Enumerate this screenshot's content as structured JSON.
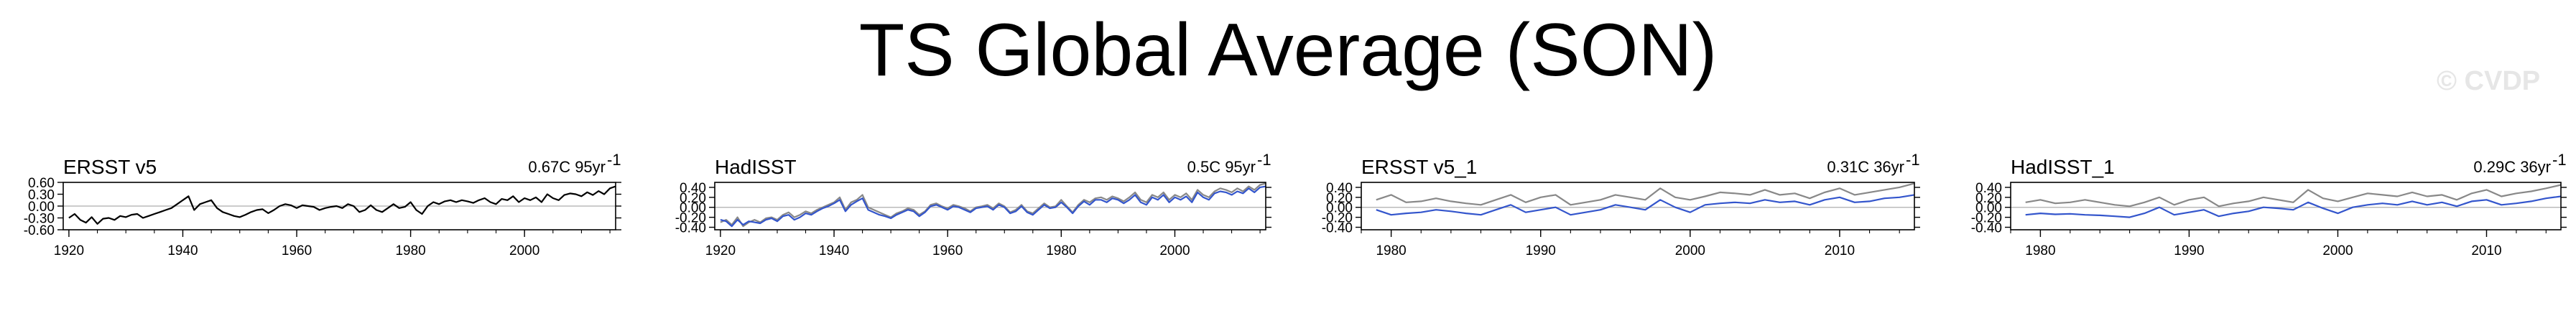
{
  "title": "TS Global Average (SON)",
  "watermark": "© CVDP",
  "colors": {
    "primary": "#000000",
    "observed": "#888888",
    "model": "#3355cc",
    "zero": "#bbbbbb"
  },
  "chart_data": [
    {
      "type": "line",
      "title": "ERSST v5",
      "trend_text": "0.67C 95yr",
      "trend_exp": "-1",
      "xlim": [
        1919,
        2016
      ],
      "ylim": [
        -0.6,
        0.6
      ],
      "xticks": [
        1920,
        1940,
        1960,
        1980,
        2000
      ],
      "yticks": [
        -0.6,
        -0.3,
        0.0,
        0.3,
        0.6
      ],
      "ytick_labels": [
        "-0.60",
        "-0.30",
        "0.00",
        "0.30",
        "0.60"
      ],
      "series": [
        {
          "x0": 1920,
          "values": [
            -0.3,
            -0.2,
            -0.35,
            -0.42,
            -0.28,
            -0.45,
            -0.32,
            -0.3,
            -0.35,
            -0.25,
            -0.28,
            -0.22,
            -0.2,
            -0.3,
            -0.25,
            -0.2,
            -0.15,
            -0.1,
            -0.05,
            0.05,
            0.15,
            0.25,
            -0.1,
            0.05,
            0.1,
            0.15,
            -0.05,
            -0.15,
            -0.2,
            -0.25,
            -0.28,
            -0.22,
            -0.15,
            -0.1,
            -0.08,
            -0.18,
            -0.1,
            0.0,
            0.05,
            0.02,
            -0.05,
            0.02,
            0.0,
            -0.02,
            -0.1,
            -0.05,
            -0.02,
            0.0,
            -0.05,
            0.05,
            0.0,
            -0.15,
            -0.1,
            0.02,
            -0.1,
            -0.15,
            -0.05,
            0.05,
            -0.05,
            -0.02,
            0.1,
            -0.1,
            -0.2,
            0.0,
            0.1,
            0.05,
            0.12,
            0.15,
            0.1,
            0.15,
            0.12,
            0.08,
            0.15,
            0.2,
            0.1,
            0.05,
            0.18,
            0.15,
            0.25,
            0.1,
            0.2,
            0.15,
            0.22,
            0.1,
            0.3,
            0.2,
            0.15,
            0.28,
            0.32,
            0.3,
            0.25,
            0.35,
            0.28,
            0.38,
            0.3,
            0.45,
            0.5
          ]
        }
      ]
    },
    {
      "type": "line",
      "title": "HadISST",
      "trend_text": "0.5C 95yr",
      "trend_exp": "-1",
      "xlim": [
        1919,
        2016
      ],
      "ylim": [
        -0.45,
        0.5
      ],
      "xticks": [
        1920,
        1940,
        1960,
        1980,
        2000
      ],
      "yticks": [
        -0.4,
        -0.2,
        0.0,
        0.2,
        0.4
      ],
      "ytick_labels": [
        "-0.40",
        "-0.20",
        "0.00",
        "0.20",
        "0.40"
      ],
      "series": [
        {
          "x0": 1920,
          "values": [
            -0.3,
            -0.25,
            -0.35,
            -0.2,
            -0.38,
            -0.3,
            -0.25,
            -0.3,
            -0.22,
            -0.2,
            -0.25,
            -0.15,
            -0.1,
            -0.2,
            -0.15,
            -0.08,
            -0.12,
            -0.05,
            0.0,
            0.05,
            0.1,
            0.2,
            -0.05,
            0.1,
            0.15,
            0.25,
            0.0,
            -0.05,
            -0.1,
            -0.15,
            -0.2,
            -0.12,
            -0.08,
            -0.02,
            -0.05,
            -0.15,
            -0.08,
            0.05,
            0.08,
            0.02,
            -0.02,
            0.05,
            0.02,
            -0.02,
            -0.08,
            0.0,
            0.02,
            0.05,
            -0.02,
            0.08,
            0.02,
            -0.1,
            -0.05,
            0.05,
            -0.08,
            -0.12,
            -0.02,
            0.08,
            0.0,
            0.02,
            0.15,
            0.02,
            -0.1,
            0.05,
            0.15,
            0.1,
            0.18,
            0.2,
            0.15,
            0.22,
            0.18,
            0.12,
            0.2,
            0.3,
            0.15,
            0.1,
            0.25,
            0.2,
            0.3,
            0.15,
            0.25,
            0.2,
            0.28,
            0.15,
            0.35,
            0.25,
            0.2,
            0.32,
            0.38,
            0.35,
            0.3,
            0.38,
            0.32,
            0.42,
            0.35,
            0.45,
            0.48
          ]
        },
        {
          "x0": 1920,
          "values": [
            -0.25,
            -0.28,
            -0.38,
            -0.25,
            -0.35,
            -0.28,
            -0.3,
            -0.32,
            -0.25,
            -0.22,
            -0.28,
            -0.18,
            -0.15,
            -0.25,
            -0.2,
            -0.12,
            -0.15,
            -0.08,
            -0.02,
            0.02,
            0.08,
            0.15,
            -0.08,
            0.05,
            0.12,
            0.18,
            -0.05,
            -0.1,
            -0.15,
            -0.18,
            -0.22,
            -0.15,
            -0.1,
            -0.05,
            -0.08,
            -0.18,
            -0.1,
            0.02,
            0.05,
            0.0,
            -0.05,
            0.02,
            0.0,
            -0.05,
            -0.1,
            -0.02,
            0.0,
            0.02,
            -0.05,
            0.05,
            0.0,
            -0.12,
            -0.08,
            0.02,
            -0.1,
            -0.15,
            -0.05,
            0.05,
            -0.02,
            0.0,
            0.1,
            0.0,
            -0.12,
            0.02,
            0.12,
            0.05,
            0.15,
            0.15,
            0.1,
            0.18,
            0.15,
            0.08,
            0.15,
            0.25,
            0.1,
            0.05,
            0.2,
            0.15,
            0.25,
            0.1,
            0.2,
            0.15,
            0.22,
            0.1,
            0.3,
            0.2,
            0.15,
            0.28,
            0.32,
            0.3,
            0.25,
            0.32,
            0.28,
            0.38,
            0.3,
            0.4,
            0.42
          ]
        }
      ]
    },
    {
      "type": "line",
      "title": "ERSST v5_1",
      "trend_text": "0.31C 36yr",
      "trend_exp": "-1",
      "xlim": [
        1978,
        2015
      ],
      "ylim": [
        -0.45,
        0.5
      ],
      "xticks": [
        1980,
        1990,
        2000,
        2010
      ],
      "yticks": [
        -0.4,
        -0.2,
        0.0,
        0.2,
        0.4
      ],
      "ytick_labels": [
        "-0.40",
        "-0.20",
        "0.00",
        "0.20",
        "0.40"
      ],
      "series": [
        {
          "x0": 1979,
          "values": [
            0.15,
            0.25,
            0.1,
            0.12,
            0.18,
            0.12,
            0.08,
            0.05,
            0.15,
            0.25,
            0.1,
            0.2,
            0.25,
            0.05,
            0.1,
            0.15,
            0.25,
            0.2,
            0.15,
            0.38,
            0.2,
            0.15,
            0.22,
            0.3,
            0.28,
            0.25,
            0.35,
            0.25,
            0.28,
            0.18,
            0.3,
            0.38,
            0.25,
            0.3,
            0.35,
            0.4,
            0.48
          ]
        },
        {
          "x0": 1979,
          "values": [
            -0.05,
            -0.15,
            -0.12,
            -0.1,
            -0.05,
            -0.08,
            -0.12,
            -0.15,
            -0.05,
            0.05,
            -0.1,
            -0.05,
            0.0,
            -0.15,
            -0.1,
            -0.05,
            0.05,
            0.0,
            -0.05,
            0.15,
            0.0,
            -0.1,
            0.05,
            0.08,
            0.1,
            0.08,
            0.15,
            0.1,
            0.12,
            0.05,
            0.15,
            0.2,
            0.1,
            0.12,
            0.18,
            0.2,
            0.25
          ]
        }
      ]
    },
    {
      "type": "line",
      "title": "HadISST_1",
      "trend_text": "0.29C 36yr",
      "trend_exp": "-1",
      "xlim": [
        1978,
        2015
      ],
      "ylim": [
        -0.45,
        0.5
      ],
      "xticks": [
        1980,
        1990,
        2000,
        2010
      ],
      "yticks": [
        -0.4,
        -0.2,
        0.0,
        0.2,
        0.4
      ],
      "ytick_labels": [
        "-0.40",
        "-0.20",
        "0.00",
        "0.20",
        "0.40"
      ],
      "series": [
        {
          "x0": 1979,
          "values": [
            0.1,
            0.15,
            0.08,
            0.1,
            0.15,
            0.1,
            0.05,
            0.02,
            0.1,
            0.2,
            0.05,
            0.15,
            0.2,
            0.02,
            0.08,
            0.12,
            0.2,
            0.15,
            0.1,
            0.35,
            0.18,
            0.12,
            0.2,
            0.28,
            0.25,
            0.22,
            0.3,
            0.22,
            0.25,
            0.15,
            0.28,
            0.35,
            0.22,
            0.28,
            0.32,
            0.38,
            0.45
          ]
        },
        {
          "x0": 1979,
          "values": [
            -0.15,
            -0.12,
            -0.14,
            -0.13,
            -0.15,
            -0.16,
            -0.18,
            -0.2,
            -0.12,
            0.0,
            -0.15,
            -0.1,
            -0.05,
            -0.18,
            -0.12,
            -0.08,
            0.0,
            -0.02,
            -0.05,
            0.1,
            -0.02,
            -0.12,
            0.0,
            0.05,
            0.08,
            0.05,
            0.12,
            0.05,
            0.1,
            0.02,
            0.12,
            0.15,
            0.05,
            0.08,
            0.12,
            0.18,
            0.22
          ]
        }
      ]
    }
  ]
}
